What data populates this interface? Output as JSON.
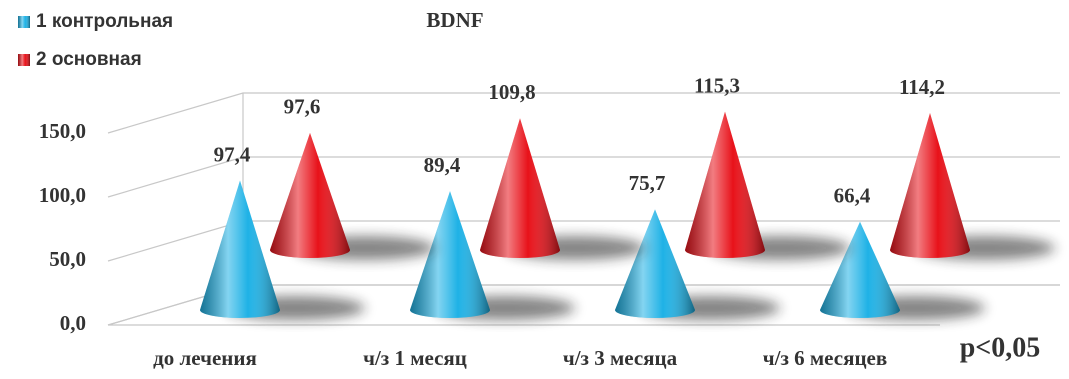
{
  "chart_data": {
    "type": "cone",
    "title": "BDNF",
    "categories": [
      "до лечения",
      "ч/з 1 месяц",
      "ч/з 3 месяца",
      "ч/з 6 месяцев"
    ],
    "series": [
      {
        "name": "1 контрольная",
        "color": "#1fb2e6",
        "values": [
          97.4,
          89.4,
          75.7,
          66.4
        ],
        "value_labels": [
          "97,4",
          "89,4",
          "75,7",
          "66,4"
        ]
      },
      {
        "name": "2 основная",
        "color": "#e8121a",
        "values": [
          97.6,
          109.8,
          115.3,
          114.2
        ],
        "value_labels": [
          "97,6",
          "109,8",
          "115,3",
          "114,2"
        ]
      }
    ],
    "ylim": [
      0,
      150
    ],
    "yticks": [
      {
        "value": 0,
        "label": "0,0"
      },
      {
        "value": 50,
        "label": "50,0"
      },
      {
        "value": 100,
        "label": "100,0"
      },
      {
        "value": 150,
        "label": "150,0"
      }
    ],
    "grid": true,
    "legend": "top-left",
    "annotation": "p<0,05"
  }
}
